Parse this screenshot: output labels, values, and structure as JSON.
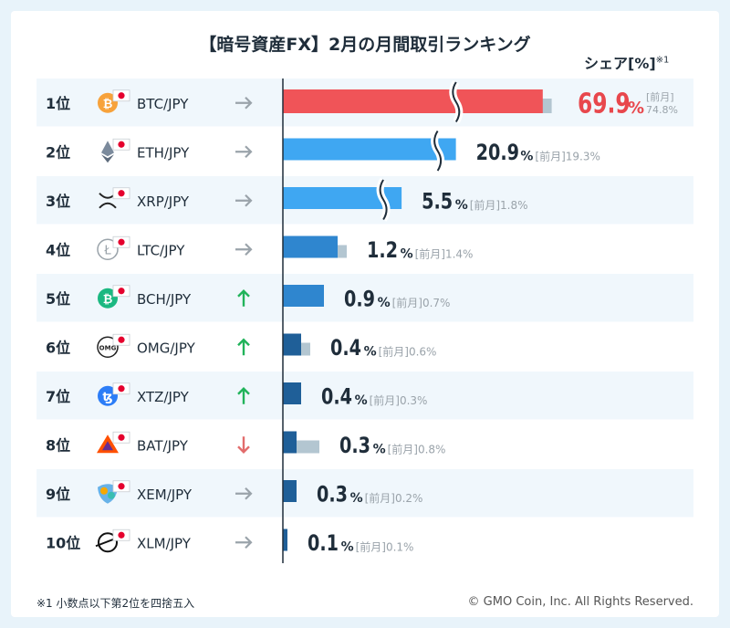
{
  "title": "【暗号資産FX】2月の月間取引ランキング",
  "share_label": "シェア[%]",
  "share_note_mark": "※1",
  "footnote": "※1  小数点以下第2位を四捨五入",
  "copyright": "© GMO Coin, Inc. All Rights Reserved.",
  "prev_label": "[前月]",
  "rank_suffix": "位",
  "percent_sign": "%",
  "colors": {
    "top_bar": "#f05458",
    "prev_bar": "#b3c6d1",
    "highlight_value": "#e8474c",
    "arrow_same": "#9aa3aa",
    "arrow_up": "#21b35a",
    "arrow_down": "#e26c6c",
    "row_alt": "#f0f7fc",
    "bar_light": "#3fa7f2",
    "bar_mid": "#2f86cf",
    "bar_dark": "#1f5f98"
  },
  "chart_data": {
    "type": "bar",
    "orientation": "horizontal",
    "title": "【暗号資産FX】2月の月間取引ランキング",
    "unit": "%",
    "series": [
      {
        "name": "",
        "values": [
          69.9,
          20.9,
          5.5,
          1.2,
          0.9,
          0.4,
          0.4,
          0.3,
          0.3,
          0.1
        ]
      },
      {
        "name": "前月",
        "values": [
          74.8,
          19.3,
          1.8,
          1.4,
          0.7,
          0.6,
          0.3,
          0.8,
          0.2,
          0.1
        ]
      }
    ],
    "rows": [
      {
        "rank": "1",
        "pair": "BTC/JPY",
        "icon": "bitcoin-icon",
        "trend": "same",
        "value": 69.9,
        "prev": 74.8,
        "value_text": "69.9",
        "prev_text": "74.8"
      },
      {
        "rank": "2",
        "pair": "ETH/JPY",
        "icon": "ethereum-icon",
        "trend": "same",
        "value": 20.9,
        "prev": 19.3,
        "value_text": "20.9",
        "prev_text": "19.3"
      },
      {
        "rank": "3",
        "pair": "XRP/JPY",
        "icon": "xrp-icon",
        "trend": "same",
        "value": 5.5,
        "prev": 1.8,
        "value_text": "5.5",
        "prev_text": "1.8"
      },
      {
        "rank": "4",
        "pair": "LTC/JPY",
        "icon": "litecoin-icon",
        "trend": "same",
        "value": 1.2,
        "prev": 1.4,
        "value_text": "1.2",
        "prev_text": "1.4"
      },
      {
        "rank": "5",
        "pair": "BCH/JPY",
        "icon": "bitcoin-cash-icon",
        "trend": "up",
        "value": 0.9,
        "prev": 0.7,
        "value_text": "0.9",
        "prev_text": "0.7"
      },
      {
        "rank": "6",
        "pair": "OMG/JPY",
        "icon": "omg-icon",
        "trend": "up",
        "value": 0.4,
        "prev": 0.6,
        "value_text": "0.4",
        "prev_text": "0.6"
      },
      {
        "rank": "7",
        "pair": "XTZ/JPY",
        "icon": "tezos-icon",
        "trend": "up",
        "value": 0.4,
        "prev": 0.3,
        "value_text": "0.4",
        "prev_text": "0.3"
      },
      {
        "rank": "8",
        "pair": "BAT/JPY",
        "icon": "bat-icon",
        "trend": "down",
        "value": 0.3,
        "prev": 0.8,
        "value_text": "0.3",
        "prev_text": "0.8"
      },
      {
        "rank": "9",
        "pair": "XEM/JPY",
        "icon": "nem-icon",
        "trend": "same",
        "value": 0.3,
        "prev": 0.2,
        "value_text": "0.3",
        "prev_text": "0.2"
      },
      {
        "rank": "10",
        "pair": "XLM/JPY",
        "icon": "stellar-icon",
        "trend": "same",
        "value": 0.1,
        "prev": 0.1,
        "value_text": "0.1",
        "prev_text": "0.1"
      }
    ]
  }
}
